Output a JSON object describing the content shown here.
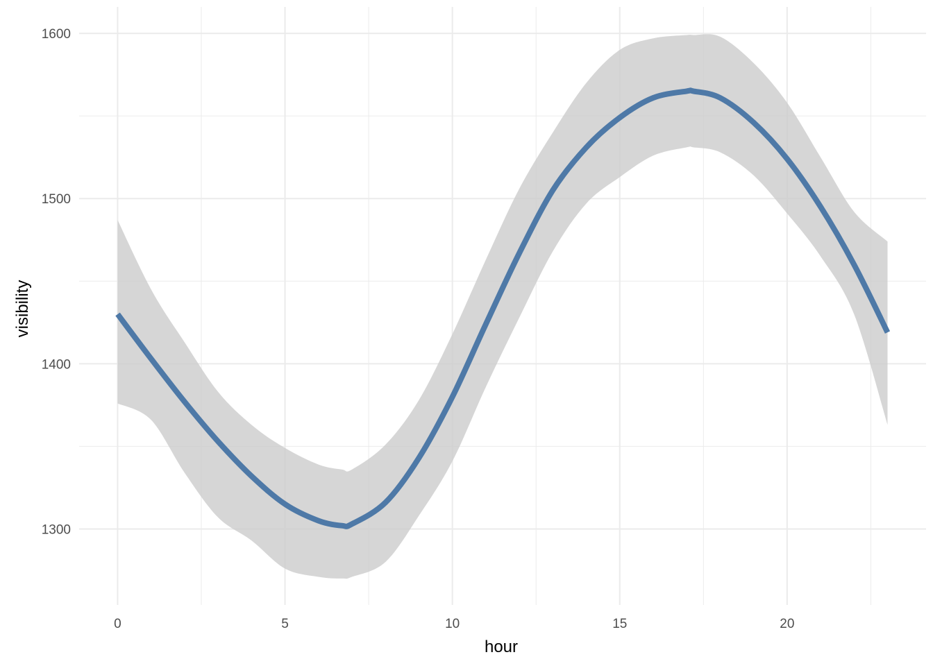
{
  "chart_data": {
    "type": "line",
    "title": "",
    "xlabel": "hour",
    "ylabel": "visibility",
    "xlim": [
      -1.15,
      24.15
    ],
    "ylim": [
      1254,
      1616
    ],
    "x_ticks": [
      0,
      5,
      10,
      15,
      20
    ],
    "x_tick_labels": [
      "0",
      "5",
      "10",
      "15",
      "20"
    ],
    "x_minor_ticks": [
      2.5,
      7.5,
      12.5,
      17.5,
      22.5
    ],
    "y_ticks": [
      1300,
      1400,
      1500,
      1600
    ],
    "y_tick_labels": [
      "1300",
      "1400",
      "1500",
      "1600"
    ],
    "y_minor_ticks": [
      1350,
      1450,
      1550
    ],
    "grid": true,
    "legend": "none",
    "colors": {
      "line": "#4e79a7",
      "ribbon": "#cccccc",
      "grid": "#ebebeb"
    },
    "series": [
      {
        "x": [
          0,
          1,
          2,
          3,
          4,
          5,
          6,
          6.7,
          7,
          8,
          9,
          10,
          11,
          12,
          13,
          14,
          15,
          16,
          17,
          17.2,
          18,
          19,
          20,
          21,
          22,
          23
        ],
        "y": [
          1430,
          1403,
          1377,
          1353,
          1332,
          1315,
          1305,
          1302,
          1303,
          1316,
          1343,
          1380,
          1424,
          1467,
          1505,
          1531,
          1549,
          1561,
          1565,
          1565,
          1561,
          1546,
          1524,
          1495,
          1460,
          1419
        ],
        "ymin": [
          1376,
          1366,
          1334,
          1307,
          1293,
          1276,
          1271,
          1270,
          1271,
          1280,
          1308,
          1341,
          1386,
          1428,
          1468,
          1497,
          1513,
          1526,
          1531,
          1531,
          1528,
          1514,
          1491,
          1465,
          1430,
          1363
        ],
        "ymax": [
          1487,
          1445,
          1413,
          1383,
          1363,
          1349,
          1339,
          1336,
          1336,
          1351,
          1378,
          1418,
          1463,
          1506,
          1540,
          1570,
          1590,
          1597,
          1599,
          1599,
          1598,
          1582,
          1558,
          1525,
          1492,
          1474
        ]
      }
    ]
  }
}
